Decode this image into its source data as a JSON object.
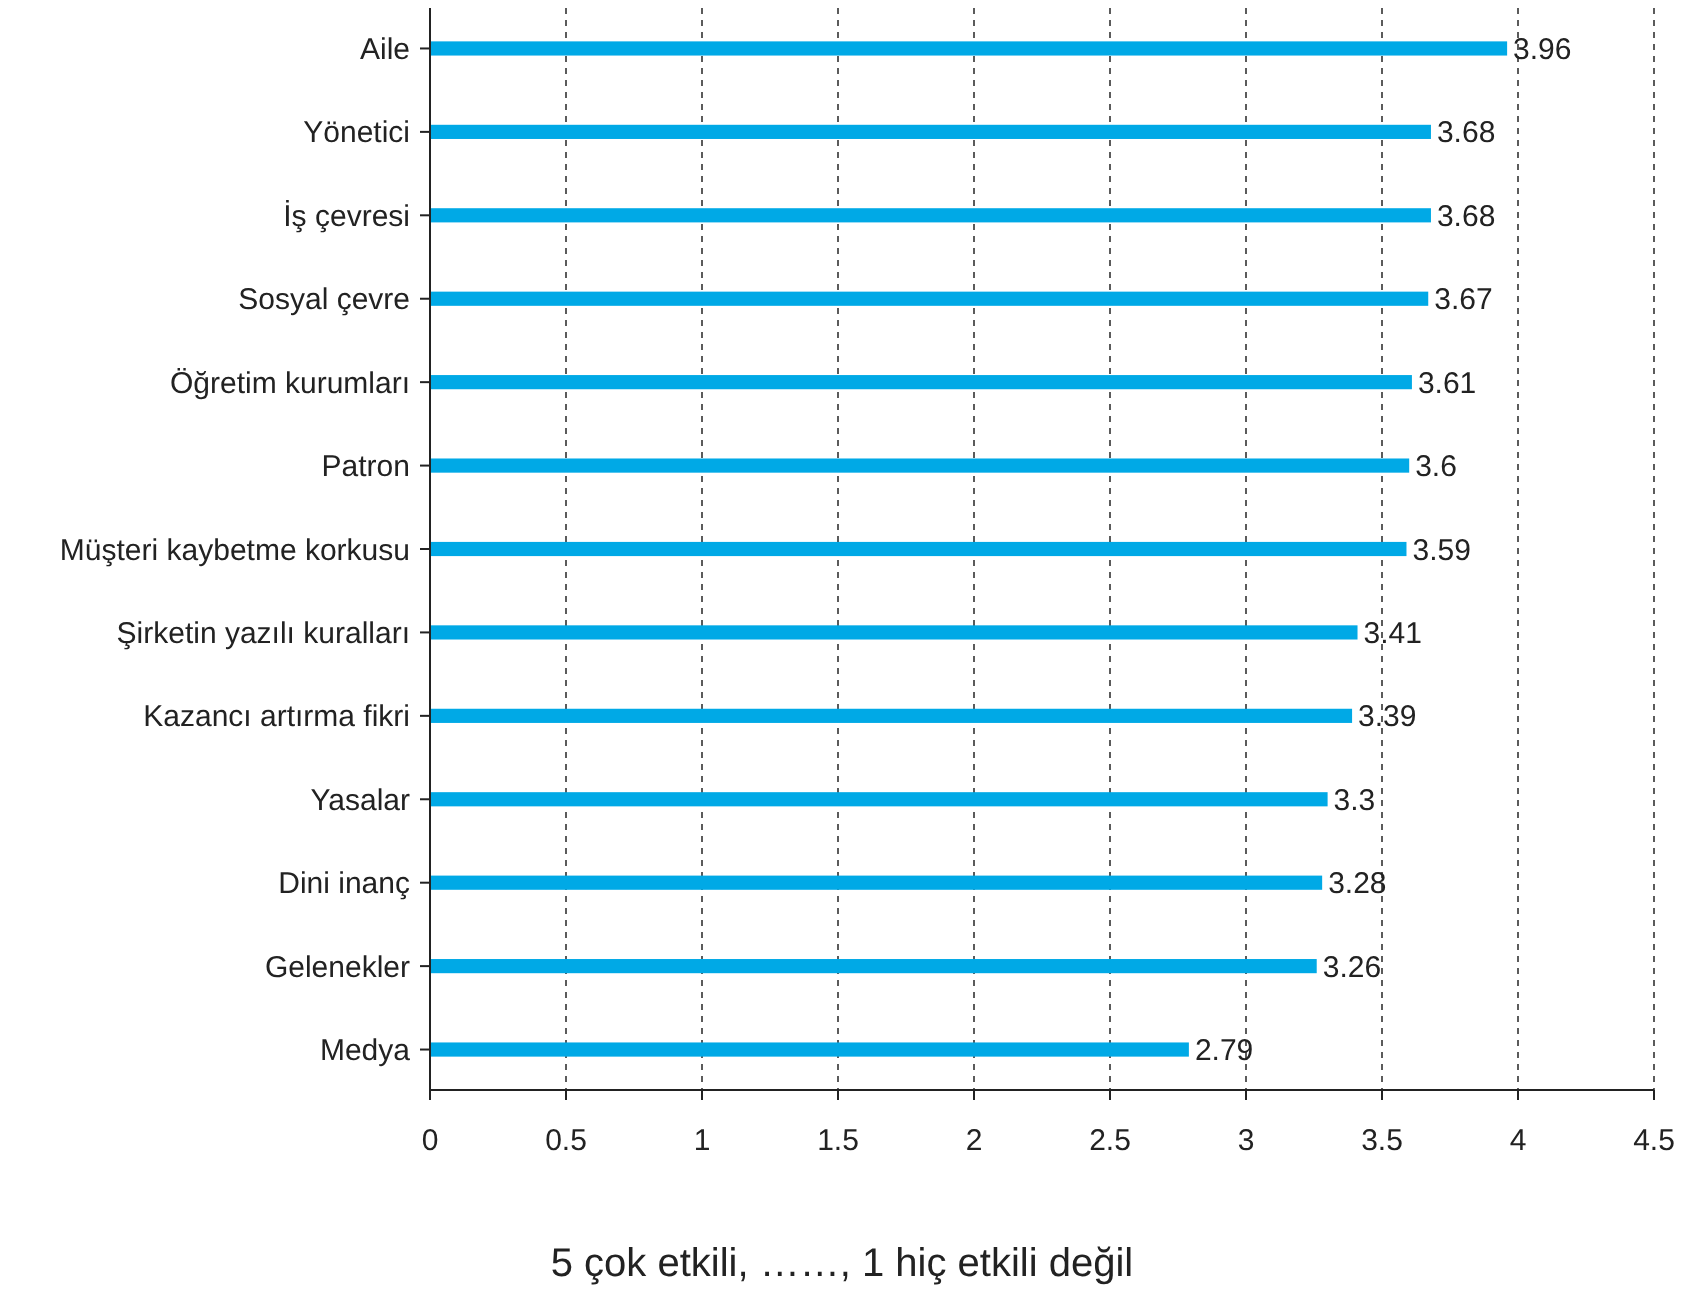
{
  "chart_data": {
    "type": "bar",
    "orientation": "horizontal",
    "xlabel": "5 çok etkili, ……, 1 hiç etkili değil",
    "categories": [
      "Aile",
      "Yönetici",
      "İş çevresi",
      "Sosyal çevre",
      "Öğretim kurumları",
      "Patron",
      "Müşteri kaybetme korkusu",
      "Şirketin yazılı kuralları",
      "Kazancı artırma fikri",
      "Yasalar",
      "Dini inanç",
      "Gelenekler",
      "Medya"
    ],
    "values": [
      3.96,
      3.68,
      3.68,
      3.67,
      3.61,
      3.6,
      3.59,
      3.41,
      3.39,
      3.3,
      3.28,
      3.26,
      2.79
    ],
    "value_labels": [
      "3.96",
      "3.68",
      "3.68",
      "3.67",
      "3.61",
      "3.6",
      "3.59",
      "3.41",
      "3.39",
      "3.3",
      "3.28",
      "3.26",
      "2.79"
    ],
    "color": "#00a9e6",
    "xlim": [
      0,
      4.5
    ],
    "xticks": [
      0,
      0.5,
      1,
      1.5,
      2,
      2.5,
      3,
      3.5,
      4,
      4.5
    ],
    "grid": "x"
  }
}
